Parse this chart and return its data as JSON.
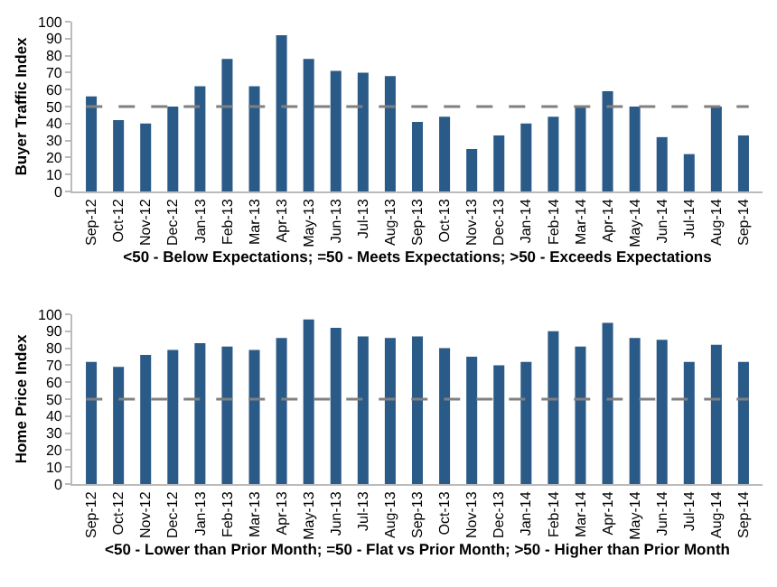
{
  "chart_data": [
    {
      "type": "bar",
      "ylabel": "Buyer Traffic Index",
      "xlabel": "<50 - Below Expectations; =50 - Meets Expectations; >50 - Exceeds Expectations",
      "categories": [
        "Sep-12",
        "Oct-12",
        "Nov-12",
        "Dec-12",
        "Jan-13",
        "Feb-13",
        "Mar-13",
        "Apr-13",
        "May-13",
        "Jun-13",
        "Jul-13",
        "Aug-13",
        "Sep-13",
        "Oct-13",
        "Nov-13",
        "Dec-13",
        "Jan-14",
        "Feb-14",
        "Mar-14",
        "Apr-14",
        "May-14",
        "Jun-14",
        "Jul-14",
        "Aug-14",
        "Sep-14"
      ],
      "values": [
        56,
        42,
        40,
        50,
        62,
        78,
        62,
        92,
        78,
        71,
        70,
        68,
        41,
        44,
        25,
        33,
        40,
        44,
        50,
        59,
        50,
        32,
        22,
        50,
        33
      ],
      "color": "#2a5a88",
      "ylim": [
        0,
        100
      ],
      "yticks": [
        0,
        10,
        20,
        30,
        40,
        50,
        60,
        70,
        80,
        90,
        100
      ],
      "grid": false,
      "ref_lines": [
        {
          "axis": "y",
          "value": 50,
          "color": "#808080",
          "line_style": "dashed"
        }
      ]
    },
    {
      "type": "bar",
      "ylabel": "Home Price Index",
      "xlabel": "<50 - Lower than Prior Month; =50 - Flat vs Prior Month; >50 - Higher than Prior Month",
      "categories": [
        "Sep-12",
        "Oct-12",
        "Nov-12",
        "Dec-12",
        "Jan-13",
        "Feb-13",
        "Mar-13",
        "Apr-13",
        "May-13",
        "Jun-13",
        "Jul-13",
        "Aug-13",
        "Sep-13",
        "Oct-13",
        "Nov-13",
        "Dec-13",
        "Jan-14",
        "Feb-14",
        "Mar-14",
        "Apr-14",
        "May-14",
        "Jun-14",
        "Jul-14",
        "Aug-14",
        "Sep-14"
      ],
      "values": [
        72,
        69,
        76,
        79,
        83,
        81,
        79,
        86,
        97,
        92,
        87,
        86,
        87,
        80,
        75,
        70,
        72,
        90,
        81,
        95,
        86,
        85,
        72,
        82,
        72
      ],
      "color": "#2a5a88",
      "ylim": [
        0,
        100
      ],
      "yticks": [
        0,
        10,
        20,
        30,
        40,
        50,
        60,
        70,
        80,
        90,
        100
      ],
      "grid": false,
      "ref_lines": [
        {
          "axis": "y",
          "value": 50,
          "color": "#808080",
          "line_style": "dashed"
        }
      ]
    }
  ]
}
